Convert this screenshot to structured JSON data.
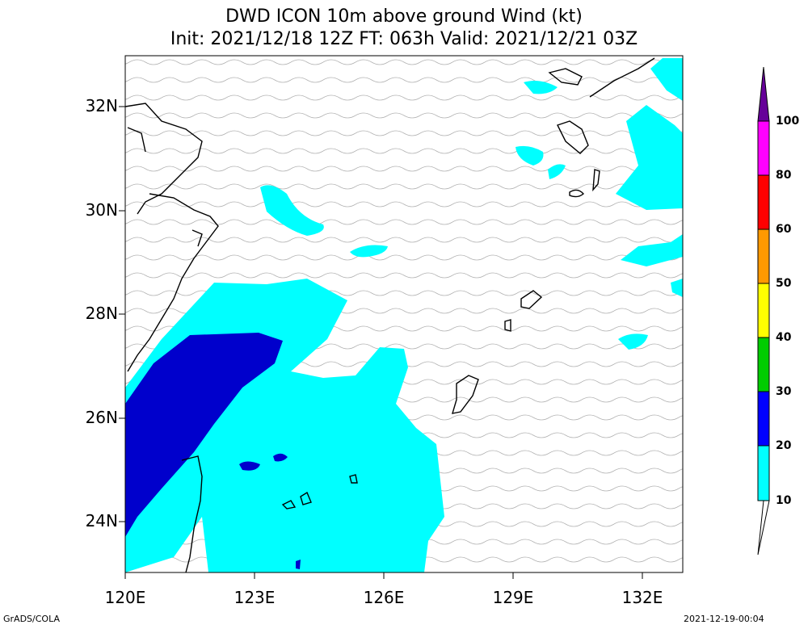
{
  "title": {
    "line1": "DWD ICON 10m above ground Wind (kt)",
    "line2": "Init: 2021/12/18 12Z  FT: 063h  Valid: 2021/12/21 03Z"
  },
  "axes": {
    "x_ticks": [
      "120E",
      "123E",
      "126E",
      "129E",
      "132E"
    ],
    "y_ticks": [
      "32N",
      "30N",
      "28N",
      "26N",
      "24N"
    ]
  },
  "colorbar": {
    "levels": [
      "10",
      "20",
      "30",
      "40",
      "50",
      "60",
      "80",
      "100"
    ],
    "colors": [
      "#ffffff",
      "#00ffff",
      "#0000ff",
      "#00cc00",
      "#ffff00",
      "#ff9900",
      "#ff0000",
      "#ff00ff",
      "#660099"
    ]
  },
  "footer": {
    "left": "GrADS/COLA",
    "right": "2021-12-19-00:04"
  }
}
